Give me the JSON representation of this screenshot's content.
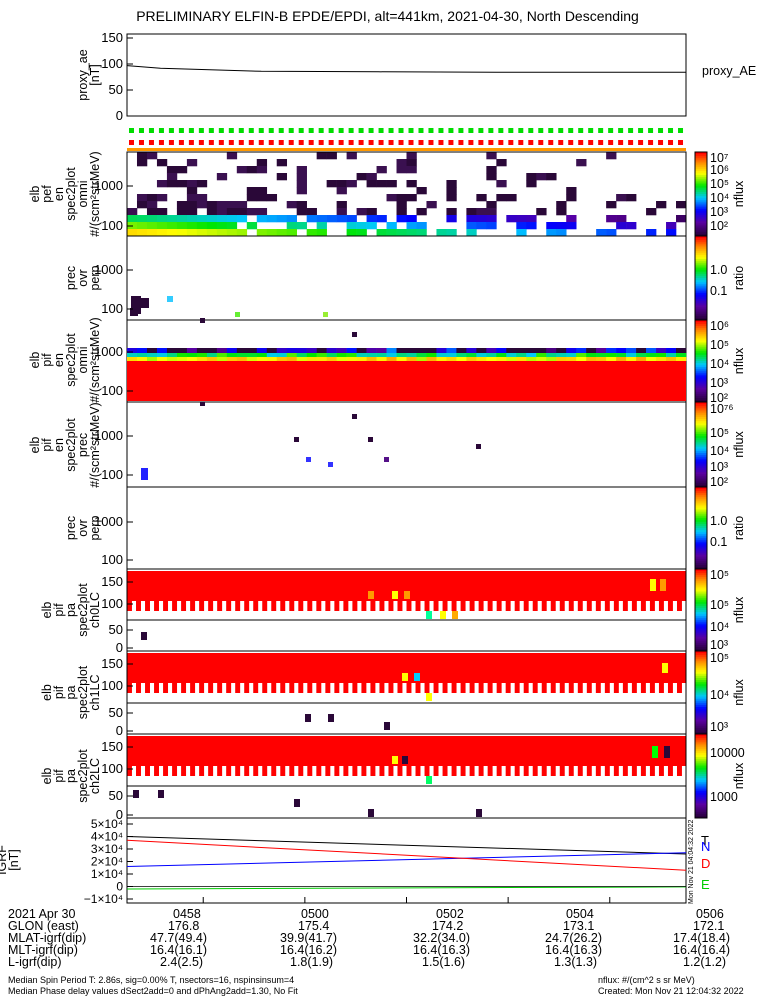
{
  "title": "PRELIMINARY ELFIN-B EPDE/EPDI, alt=441km, 2021-04-30, North Descending",
  "colors": {
    "red": "#ff0000",
    "green": "#00dd00",
    "blue": "#0000ff",
    "orange": "#ff9900",
    "dark": "#2a0838"
  },
  "chart_data": [
    {
      "type": "line",
      "panel": "proxy_ae",
      "ylabel_lines": [
        "proxy_ae",
        "[nT]"
      ],
      "yticks": [
        "150",
        "100",
        "50",
        "0"
      ],
      "ylim": [
        0,
        150
      ],
      "series": [
        {
          "name": "proxy_AE",
          "x": [
            "04:57:00",
            "04:58:20",
            "05:00:00",
            "05:02:00",
            "05:04:00",
            "05:06:50"
          ],
          "values": [
            97,
            92,
            86,
            85,
            84,
            84
          ]
        }
      ]
    },
    {
      "type": "heatmap",
      "panel": "elb_pef_en_spec2plot_omni",
      "ylabel_lines": [
        "elb",
        "pef",
        "en",
        "spec2plot",
        "omni",
        "#/(scm²strMeV)"
      ],
      "yticks": [
        "1000",
        "100"
      ],
      "colorbar": {
        "label": "nflux",
        "ticks": [
          "10⁷",
          "10⁶",
          "10⁵",
          "10⁴",
          "10³",
          "10²"
        ]
      }
    },
    {
      "type": "heatmap",
      "panel": "prec_ovr_perp_e",
      "ylabel_lines": [
        "prec",
        "ovr",
        "perp"
      ],
      "yticks": [
        "1000",
        "100"
      ],
      "colorbar": {
        "label": "ratio",
        "ticks": [
          "1.0",
          "0.1"
        ]
      }
    },
    {
      "type": "heatmap",
      "panel": "elb_pif_en_spec2plot_omni",
      "ylabel_lines": [
        "elb",
        "pif",
        "en",
        "spec2plot",
        "omni",
        "#/(scm²strMeV)"
      ],
      "yticks": [
        "1000",
        "100"
      ],
      "colorbar": {
        "label": "nflux",
        "ticks": [
          "10⁶",
          "10⁵",
          "10⁴",
          "10³",
          "10²"
        ]
      }
    },
    {
      "type": "heatmap",
      "panel": "elb_pif_en_spec2plot_prec",
      "ylabel_lines": [
        "elb",
        "pif",
        "en",
        "spec2plot",
        "prec",
        "#/(scm²strMeV)"
      ],
      "yticks": [
        "1000",
        "100"
      ],
      "colorbar": {
        "label": "nflux",
        "ticks": [
          "10⁷⁶",
          "10⁵",
          "10⁴",
          "10³",
          "10²"
        ]
      }
    },
    {
      "type": "heatmap",
      "panel": "prec_ovr_perp_i",
      "ylabel_lines": [
        "prec",
        "ovr",
        "perp"
      ],
      "yticks": [
        "1000",
        "100"
      ],
      "colorbar": {
        "label": "ratio",
        "ticks": [
          "1.0",
          "0.1"
        ]
      }
    },
    {
      "type": "heatmap",
      "panel": "elb_pif_pa_spec2plot_ch0LC",
      "ylabel_lines": [
        "elb",
        "pif",
        "pa",
        "spec2plot",
        "ch0LC"
      ],
      "yticks": [
        "150",
        "100",
        "50",
        "0"
      ],
      "colorbar": {
        "label": "nflux",
        "ticks": [
          "10⁵",
          "10⁵",
          "10⁴",
          "10³"
        ]
      }
    },
    {
      "type": "heatmap",
      "panel": "elb_pif_pa_spec2plot_ch1LC",
      "ylabel_lines": [
        "elb",
        "pif",
        "pa",
        "spec2plot",
        "ch1LC"
      ],
      "yticks": [
        "150",
        "100",
        "50",
        "0"
      ],
      "colorbar": {
        "label": "nflux",
        "ticks": [
          "10⁵",
          "10⁴",
          "10³"
        ]
      }
    },
    {
      "type": "heatmap",
      "panel": "elb_pif_pa_spec2plot_ch2LC",
      "ylabel_lines": [
        "elb",
        "pif",
        "pa",
        "spec2plot",
        "ch2LC"
      ],
      "yticks": [
        "150",
        "100",
        "50",
        "0"
      ],
      "colorbar": {
        "label": "nflux",
        "ticks": [
          "10000",
          "1000"
        ]
      }
    },
    {
      "type": "line",
      "panel": "igrf",
      "ylabel_lines": [
        "IGRF",
        "[nT]"
      ],
      "yticks": [
        "5×10⁴",
        "4×10⁴",
        "3×10⁴",
        "2×10⁴",
        "1×10⁴",
        "0",
        "−1×10⁴"
      ],
      "ylim": [
        -10000,
        50000
      ],
      "series": [
        {
          "name": "T",
          "values": [
            40000,
            26000
          ]
        },
        {
          "name": "N",
          "values": [
            16000,
            27000
          ]
        },
        {
          "name": "D",
          "values": [
            37000,
            13000
          ]
        },
        {
          "name": "E",
          "values": [
            -2000,
            -300
          ]
        }
      ]
    }
  ],
  "x_axis": {
    "ticks": [
      "0458",
      "0500",
      "0502",
      "0504",
      "0506"
    ],
    "rows": [
      {
        "label": "2021 Apr 30",
        "values": [
          "0458",
          "0500",
          "0502",
          "0504",
          "0506"
        ]
      },
      {
        "label": "GLON (east)",
        "values": [
          "176.8",
          "175.4",
          "174.2",
          "173.1",
          "172.1"
        ]
      },
      {
        "label": "MLAT-igrf(dip)",
        "values": [
          "47.7(49.4)",
          "39.9(41.7)",
          "32.2(34.0)",
          "24.7(26.2)",
          "17.4(18.4)"
        ]
      },
      {
        "label": "MLT-igrf(dip)",
        "values": [
          "16.4(16.1)",
          "16.4(16.2)",
          "16.4(16.3)",
          "16.4(16.3)",
          "16.4(16.4)"
        ]
      },
      {
        "label": "L-igrf(dip)",
        "values": [
          "2.4(2.5)",
          "1.8(1.9)",
          "1.5(1.6)",
          "1.3(1.3)",
          "1.2(1.2)"
        ]
      }
    ]
  },
  "footer": {
    "left1": "Median Spin Period T: 2.86s, sig=0.00% T, nsectors=16, nspinsinsum=4",
    "left2": "Median Phase delay values dSect2add=0 and dPhAng2add=1.30, No Fit",
    "right1": "nflux: #/(cm^2 s sr MeV)",
    "right2": "Created: Mon Nov 21 12:04:32 2022",
    "stamp": "Mon Nov 21 04:04:32 2022"
  }
}
